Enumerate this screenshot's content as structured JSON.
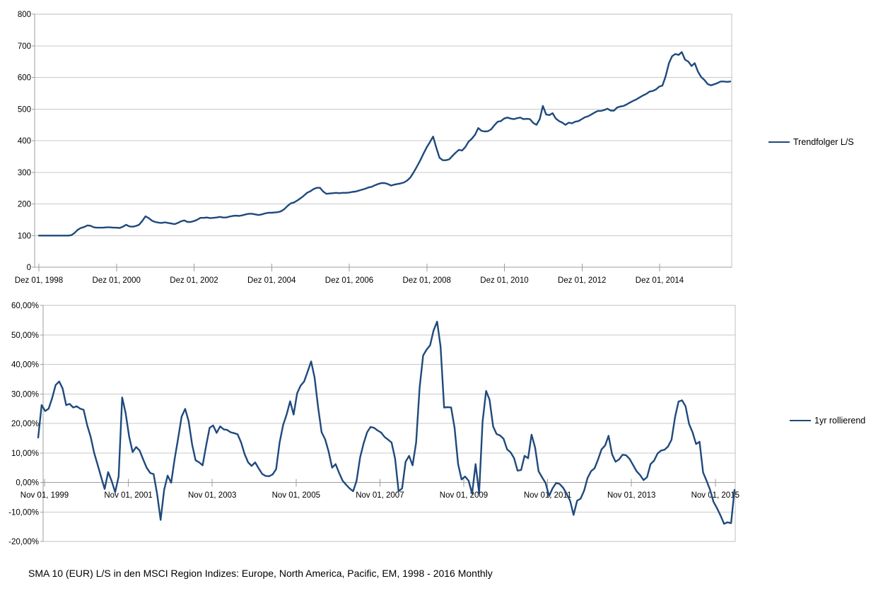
{
  "caption": "SMA 10 (EUR) L/S in den MSCI Region Indizes: Europe, North America, Pacific, EM, 1998 - 2016 Monthly",
  "colors": {
    "series_line": "#1F497D",
    "gridline": "#C9C9C9",
    "plot_border": "#BFBFBF",
    "axis": "#9E9E9E",
    "text": "#000000"
  },
  "chart_data": [
    {
      "type": "line",
      "title": "",
      "frequency": "monthly",
      "grid": true,
      "legend_position": "right",
      "x_axis": {
        "tick_labels": [
          "Dez 01, 1998",
          "Dez 01, 2000",
          "Dez 01, 2002",
          "Dez 01, 2004",
          "Dez 01, 2006",
          "Dez 01, 2008",
          "Dez 01, 2010",
          "Dez 01, 2012",
          "Dez 01, 2014"
        ]
      },
      "y_axis": {
        "min": 0,
        "max": 800,
        "tick_step": 100,
        "tick_labels": [
          "0",
          "100",
          "200",
          "300",
          "400",
          "500",
          "600",
          "700",
          "800"
        ]
      },
      "series": [
        {
          "name": "Trendfolger L/S",
          "color": "#1F497D",
          "values": [
            100,
            100,
            100,
            100,
            100,
            100,
            100,
            100,
            100,
            100,
            101,
            108,
            118,
            124,
            127,
            132,
            131,
            126,
            125,
            125,
            125,
            126,
            126,
            125,
            125,
            124,
            128,
            134,
            129,
            128,
            130,
            134,
            146,
            161,
            155,
            147,
            143,
            141,
            140,
            142,
            140,
            138,
            136,
            140,
            145,
            148,
            143,
            143,
            146,
            150,
            156,
            156,
            157,
            155,
            156,
            157,
            159,
            157,
            157,
            160,
            162,
            163,
            162,
            164,
            167,
            169,
            169,
            167,
            165,
            167,
            170,
            172,
            172,
            173,
            174,
            177,
            184,
            194,
            202,
            205,
            211,
            218,
            226,
            235,
            240,
            247,
            251,
            251,
            239,
            232,
            233,
            234,
            235,
            234,
            235,
            235,
            236,
            238,
            239,
            242,
            245,
            248,
            252,
            254,
            259,
            263,
            266,
            266,
            263,
            258,
            261,
            263,
            265,
            268,
            274,
            284,
            300,
            318,
            337,
            358,
            378,
            395,
            413,
            378,
            346,
            338,
            338,
            341,
            352,
            362,
            371,
            369,
            380,
            397,
            406,
            419,
            440,
            431,
            429,
            430,
            436,
            449,
            460,
            462,
            470,
            473,
            470,
            468,
            471,
            473,
            468,
            469,
            468,
            456,
            450,
            468,
            510,
            483,
            481,
            487,
            470,
            462,
            457,
            450,
            457,
            455,
            460,
            462,
            468,
            474,
            477,
            483,
            489,
            494,
            494,
            497,
            501,
            495,
            495,
            505,
            508,
            510,
            515,
            521,
            526,
            531,
            537,
            543,
            548,
            555,
            557,
            562,
            571,
            574,
            604,
            645,
            667,
            674,
            671,
            680,
            656,
            650,
            636,
            645,
            618,
            601,
            592,
            579,
            575,
            578,
            582,
            587,
            587,
            586,
            587
          ]
        }
      ]
    },
    {
      "type": "line",
      "title": "",
      "frequency": "monthly",
      "grid": true,
      "legend_position": "right",
      "x_axis": {
        "tick_labels": [
          "Nov 01, 1999",
          "Nov 01, 2001",
          "Nov 01, 2003",
          "Nov 01, 2005",
          "Nov 01, 2007",
          "Nov 01, 2009",
          "Nov 01, 2011",
          "Nov 01, 2013",
          "Nov 01, 2015"
        ]
      },
      "y_axis": {
        "min": -20,
        "max": 60,
        "tick_step": 10,
        "tick_labels": [
          "-20,00%",
          "-10,00%",
          "0,00%",
          "10,00%",
          "20,00%",
          "30,00%",
          "40,00%",
          "50,00%",
          "60,00%"
        ]
      },
      "series": [
        {
          "name": "1yr rollierend",
          "color": "#1F497D",
          "values": [
            15.2,
            26.2,
            24.2,
            25,
            28.6,
            33,
            34.2,
            31.8,
            26.2,
            26.6,
            25.4,
            25.8,
            25,
            24.6,
            19.4,
            15.5,
            10,
            6,
            1.8,
            -2.2,
            3.5,
            0.5,
            -3.3,
            2,
            28.8,
            23.5,
            15.5,
            10.3,
            12,
            10.8,
            7.8,
            5,
            3.2,
            2.8,
            -4,
            -12.7,
            -2.5,
            2.3,
            -0.1,
            7.9,
            15,
            22.3,
            24.9,
            20.8,
            12.8,
            7.5,
            6.8,
            5.8,
            12.5,
            18.5,
            19.3,
            16.8,
            19,
            18,
            17.8,
            17,
            16.7,
            16.3,
            13.5,
            9.6,
            6.8,
            5.6,
            6.8,
            4.8,
            2.9,
            2.2,
            2.1,
            2.7,
            4.5,
            13.5,
            19.5,
            23,
            27.5,
            23,
            30.2,
            32.8,
            34.2,
            37.5,
            41,
            35.5,
            25.4,
            17,
            14.6,
            10.5,
            5,
            6.2,
            3.2,
            0.6,
            -0.8,
            -2,
            -3,
            0.6,
            8.5,
            13.2,
            17,
            18.8,
            18.5,
            17.6,
            16.9,
            15.4,
            14.5,
            13.5,
            8,
            -3,
            -2,
            7,
            9,
            5.8,
            13.5,
            32,
            43,
            45,
            46.5,
            51.5,
            54.5,
            46,
            25.4,
            25.5,
            25.4,
            18.5,
            6.2,
            1,
            2,
            0.6,
            -3.8,
            6.2,
            -3.6,
            20.6,
            31,
            28,
            19,
            16.4,
            15.9,
            14.8,
            11.2,
            10.2,
            8.2,
            4,
            4.2,
            9,
            8.2,
            16.2,
            11.8,
            3.8,
            1.7,
            -0.2,
            -4.6,
            -2,
            -0.2,
            -0.5,
            -1.8,
            -3.8,
            -6.2,
            -11,
            -6.2,
            -5.5,
            -2.8,
            1.5,
            3.8,
            4.8,
            7.8,
            11.2,
            12.5,
            15.8,
            9.5,
            7,
            7.8,
            9.4,
            9.2,
            8,
            5.9,
            3.8,
            2.5,
            0.8,
            1.8,
            6.2,
            7.4,
            9.8,
            10.8,
            11.1,
            12.2,
            14.5,
            22.2,
            27.4,
            27.8,
            25.8,
            19.8,
            17,
            13,
            13.8,
            3.4,
            0.6,
            -2.5,
            -6.6,
            -8.8,
            -11.2,
            -14,
            -13.5,
            -13.8,
            -2.5
          ]
        }
      ]
    }
  ]
}
